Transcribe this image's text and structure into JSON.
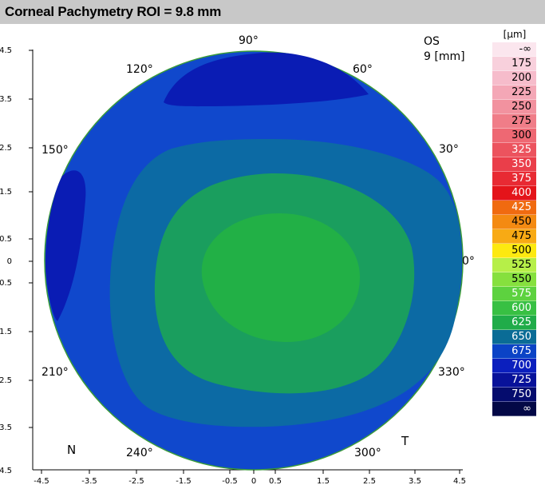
{
  "title": "Corneal Pachymetry ROI = 9.8 mm",
  "eye": "OS",
  "diameter": "9 [mm]",
  "angle_labels": [
    "90°",
    "60°",
    "30°",
    "0°",
    "330°",
    "300°",
    "240°",
    "210°",
    "150°",
    "120°"
  ],
  "corner_labels": {
    "nasal": "N",
    "temporal": "T"
  },
  "y_ticks": [
    "4.5",
    "3.5",
    "2.5",
    "1.5",
    "0.5",
    "0",
    "0.5",
    "1.5",
    "2.5",
    "3.5",
    "4.5"
  ],
  "x_ticks": [
    "-4.5",
    "-3.5",
    "-2.5",
    "-1.5",
    "-0.5",
    "0",
    "0.5",
    "1.5",
    "2.5",
    "3.5",
    "4.5"
  ],
  "legend": {
    "unit": "[µm]",
    "items": [
      {
        "label": "-∞",
        "color": "#fbe6ee",
        "text": "#000000"
      },
      {
        "label": "175",
        "color": "#f8d0dc",
        "text": "#000000"
      },
      {
        "label": "200",
        "color": "#f6bccb",
        "text": "#000000"
      },
      {
        "label": "225",
        "color": "#f4a7b6",
        "text": "#000000"
      },
      {
        "label": "250",
        "color": "#f2929f",
        "text": "#000000"
      },
      {
        "label": "275",
        "color": "#f07d88",
        "text": "#000000"
      },
      {
        "label": "300",
        "color": "#ee6873",
        "text": "#000000"
      },
      {
        "label": "325",
        "color": "#ec535e",
        "text": "#ffffff"
      },
      {
        "label": "350",
        "color": "#ea3e4a",
        "text": "#ffffff"
      },
      {
        "label": "375",
        "color": "#e82a33",
        "text": "#ffffff"
      },
      {
        "label": "400",
        "color": "#e4141a",
        "text": "#ffffff"
      },
      {
        "label": "425",
        "color": "#f06a10",
        "text": "#ffffff"
      },
      {
        "label": "450",
        "color": "#f48a12",
        "text": "#000000"
      },
      {
        "label": "475",
        "color": "#f8aa14",
        "text": "#000000"
      },
      {
        "label": "500",
        "color": "#fde910",
        "text": "#000000"
      },
      {
        "label": "525",
        "color": "#b6ef48",
        "text": "#000000"
      },
      {
        "label": "550",
        "color": "#86e03e",
        "text": "#000000"
      },
      {
        "label": "575",
        "color": "#5dd23f",
        "text": "#ffffff"
      },
      {
        "label": "600",
        "color": "#38c043",
        "text": "#ffffff"
      },
      {
        "label": "625",
        "color": "#20ac49",
        "text": "#ffffff"
      },
      {
        "label": "650",
        "color": "#0a6c96",
        "text": "#ffffff"
      },
      {
        "label": "675",
        "color": "#0b43c6",
        "text": "#ffffff"
      },
      {
        "label": "700",
        "color": "#0b1fbe",
        "text": "#ffffff"
      },
      {
        "label": "725",
        "color": "#08129a",
        "text": "#ffffff"
      },
      {
        "label": "750",
        "color": "#050c6e",
        "text": "#ffffff"
      },
      {
        "label": "∞",
        "color": "#030846",
        "text": "#ffffff"
      }
    ]
  },
  "zone_colors": {
    "outer": "#1048cc",
    "thin_patch": "#0a1cb4",
    "ring_675": "#0c6aa4",
    "ring_650": "#1a9e5e",
    "center_625": "#22b046",
    "rim": "#3a9b3a"
  }
}
